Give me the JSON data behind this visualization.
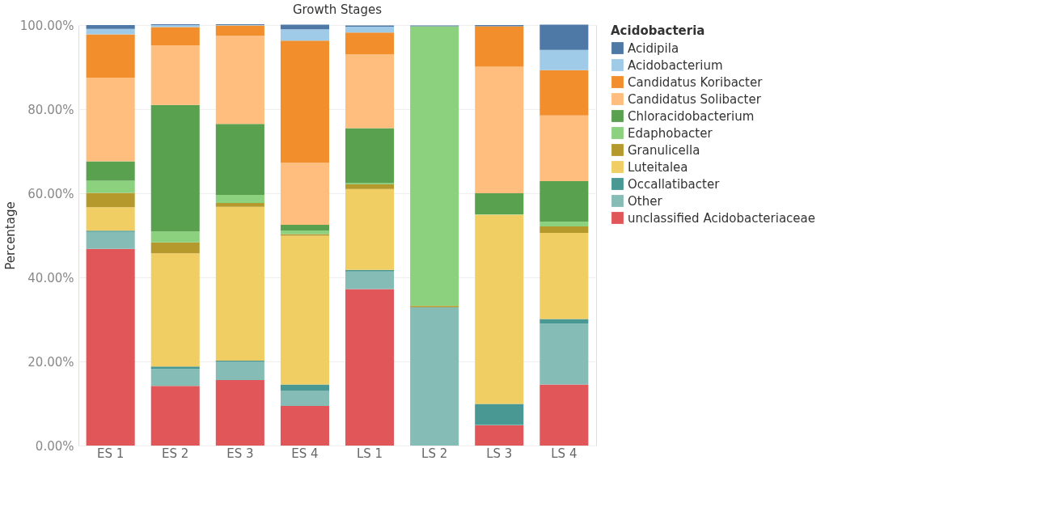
{
  "chart_data": {
    "type": "bar",
    "title": "Growth Stages",
    "ylabel": "Percentage",
    "legend_title": "Acidobacteria",
    "stacked": true,
    "legend": "top right",
    "grid": "y",
    "categories": [
      "ES 1",
      "ES 2",
      "ES 3",
      "ES 4",
      "LS 1",
      "LS 2",
      "LS 3",
      "LS 4"
    ],
    "ylim": [
      0,
      100
    ],
    "yticks": [
      {
        "value": 0,
        "label": "0.00%"
      },
      {
        "value": 20,
        "label": "20.00%"
      },
      {
        "value": 40,
        "label": "40.00%"
      },
      {
        "value": 60,
        "label": "60.00%"
      },
      {
        "value": 80,
        "label": "80.00%"
      },
      {
        "value": 100,
        "label": "100.00%"
      }
    ],
    "series": [
      {
        "name": "unclassified Acidobacteriaceae",
        "color": "#e15759",
        "values": [
          46.8,
          14.2,
          15.6,
          9.4,
          37.2,
          null,
          4.8,
          14.5
        ]
      },
      {
        "name": "Other",
        "color": "#86bcb6",
        "values": [
          4.0,
          4.0,
          4.3,
          3.7,
          4.2,
          32.9,
          0.2,
          14.5
        ]
      },
      {
        "name": "Occallatibacter",
        "color": "#499894",
        "values": [
          0.3,
          0.6,
          0.3,
          1.4,
          0.4,
          null,
          4.9,
          1.1
        ]
      },
      {
        "name": "Luteitalea",
        "color": "#f1ce63",
        "values": [
          5.6,
          26.9,
          36.6,
          35.4,
          19.2,
          null,
          45.0,
          20.5
        ]
      },
      {
        "name": "Granulicella",
        "color": "#b6992d",
        "values": [
          3.4,
          2.6,
          0.9,
          0.4,
          1.1,
          0.3,
          null,
          1.5
        ]
      },
      {
        "name": "Edaphobacter",
        "color": "#8cd17d",
        "values": [
          2.9,
          2.6,
          1.9,
          0.8,
          0.3,
          66.5,
          0.1,
          1.1
        ]
      },
      {
        "name": "Chloracidobacterium",
        "color": "#59a14f",
        "values": [
          4.6,
          30.1,
          16.9,
          1.4,
          13.1,
          null,
          5.0,
          9.7
        ]
      },
      {
        "name": "Candidatus Solibacter",
        "color": "#ffbe7d",
        "values": [
          19.9,
          14.2,
          21.0,
          14.8,
          17.6,
          null,
          30.1,
          15.6
        ]
      },
      {
        "name": "Candidatus Koribacter",
        "color": "#f28e2b",
        "values": [
          10.3,
          4.3,
          2.4,
          29.0,
          5.1,
          null,
          9.6,
          10.8
        ]
      },
      {
        "name": "Acidobacterium",
        "color": "#a0cbe8",
        "values": [
          1.3,
          0.5,
          0.1,
          2.7,
          1.4,
          null,
          null,
          4.8
        ]
      },
      {
        "name": "Acidipila",
        "color": "#4e79a7",
        "values": [
          0.9,
          0.2,
          0.2,
          1.1,
          0.3,
          0.2,
          0.3,
          6.0
        ]
      }
    ]
  }
}
